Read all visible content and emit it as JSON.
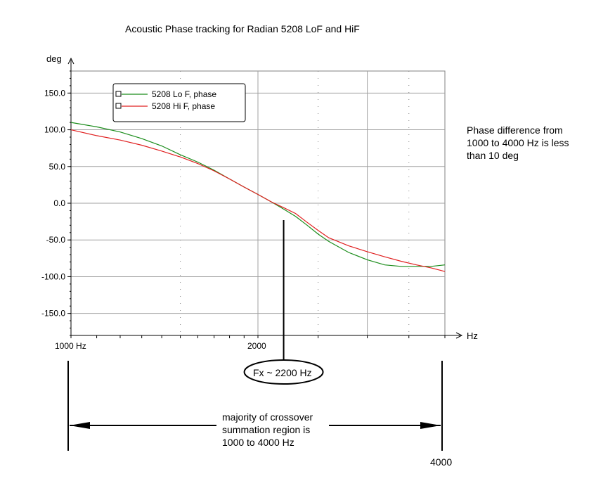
{
  "chart_data": {
    "type": "line",
    "title": "Acoustic  Phase tracking for Radian 5208 LoF and HiF",
    "ylabel": "deg",
    "xlabel": "Hz",
    "ylim": [
      -180,
      180
    ],
    "xlim": [
      1000,
      4000
    ],
    "x_scale": "log",
    "yticks": [
      150,
      100,
      50,
      0,
      -50,
      -100,
      -150
    ],
    "ytick_labels": [
      "150.0",
      "100.0",
      "50.0",
      "0.0",
      "-50.0",
      "-100.0",
      "-150.0"
    ],
    "xtick_labels": [
      "1000 Hz",
      "2000"
    ],
    "legend_position": "top-left",
    "grid": true,
    "series": [
      {
        "name": "5208 Lo F, phase",
        "color": "#1a8c1a",
        "x": [
          1000,
          1100,
          1200,
          1300,
          1400,
          1500,
          1600,
          1700,
          1800,
          1900,
          2000,
          2100,
          2200,
          2300,
          2400,
          2500,
          2600,
          2800,
          3000,
          3200,
          3400,
          3600,
          3800,
          4000
        ],
        "values": [
          110,
          104,
          97,
          88,
          78,
          66,
          56,
          45,
          33,
          22,
          12,
          2,
          -8,
          -18,
          -30,
          -42,
          -52,
          -67,
          -77,
          -84,
          -86,
          -86,
          -86,
          -84
        ]
      },
      {
        "name": "5208 Hi F, phase",
        "color": "#e02020",
        "x": [
          1000,
          1100,
          1200,
          1300,
          1400,
          1500,
          1600,
          1700,
          1800,
          1900,
          2000,
          2100,
          2200,
          2300,
          2400,
          2500,
          2600,
          2800,
          3000,
          3200,
          3400,
          3600,
          3800,
          4000
        ],
        "values": [
          100,
          92,
          86,
          79,
          71,
          63,
          54,
          44,
          33,
          22,
          12,
          2,
          -6,
          -14,
          -26,
          -37,
          -47,
          -58,
          -66,
          -73,
          -79,
          -84,
          -88,
          -93
        ]
      }
    ],
    "annotations": {
      "note": "Phase difference from 1000 to 4000 Hz is less than 10 deg",
      "fx": "Fx ~ 2200 Hz",
      "region": "majority of crossover summation region is 1000 to 4000 Hz",
      "x_end": "4000"
    }
  }
}
